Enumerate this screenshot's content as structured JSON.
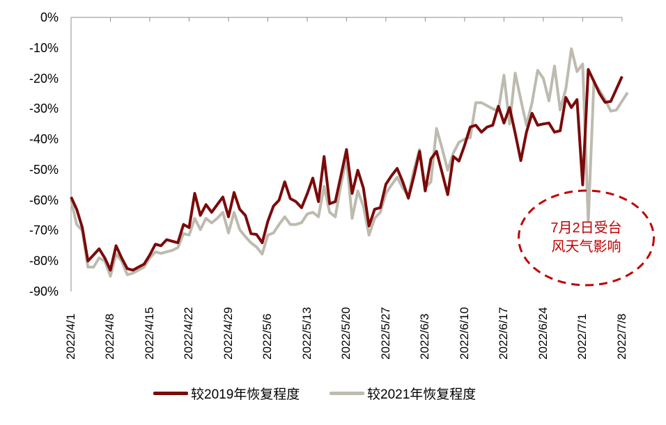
{
  "chart_data": {
    "type": "line",
    "title": "",
    "xlabel": "",
    "ylabel": "",
    "ylim": [
      -90,
      0
    ],
    "yticks": [
      "0%",
      "-10%",
      "-20%",
      "-30%",
      "-40%",
      "-50%",
      "-60%",
      "-70%",
      "-80%",
      "-90%"
    ],
    "xticks": [
      "2022/4/1",
      "2022/4/8",
      "2022/4/15",
      "2022/4/22",
      "2022/4/29",
      "2022/5/6",
      "2022/5/13",
      "2022/5/20",
      "2022/5/27",
      "2022/6/3",
      "2022/6/10",
      "2022/6/17",
      "2022/6/24",
      "2022/7/1",
      "2022/7/8"
    ],
    "x_start": "2022/4/1",
    "x_end": "2022/7/8",
    "x_step_days": 1,
    "grid": false,
    "legend_position": "bottom",
    "series": [
      {
        "name": "较2019年恢复程度",
        "color": "#7B0A0A",
        "values": [
          -59,
          -63,
          -69,
          -80,
          -78,
          -76,
          -79,
          -83,
          -75,
          -79,
          -82.5,
          -83,
          -82,
          -81,
          -78,
          -74.5,
          -75,
          -73,
          -73.5,
          -74,
          -68,
          -69,
          -57.8,
          -65,
          -61.5,
          -64,
          -61.5,
          -59,
          -65.5,
          -57.5,
          -63,
          -65,
          -71,
          -71.3,
          -74,
          -67,
          -62,
          -60,
          -54,
          -59.5,
          -60.5,
          -62.5,
          -58,
          -52.8,
          -60.5,
          -45.7,
          -61.2,
          -60.5,
          -52,
          -43.4,
          -57.8,
          -50.2,
          -56,
          -68.5,
          -63,
          -62.5,
          -54.8,
          -52,
          -49.6,
          -54,
          -59.4,
          -52,
          -44,
          -57,
          -46.5,
          -44,
          -51,
          -58.2,
          -45.7,
          -47.2,
          -42,
          -36,
          -35.4,
          -37.7,
          -36,
          -35.4,
          -29.2,
          -34.7,
          -29.6,
          -38,
          -47,
          -37.7,
          -31.5,
          -35.4,
          -35,
          -34.7,
          -37.7,
          -37.2,
          -26.3,
          -29.6,
          -27,
          -55,
          -17.1,
          -21,
          -25,
          -27.9,
          -27.6,
          -23.5,
          -19.4
        ]
      },
      {
        "name": "较2021年恢复程度",
        "color": "#BDBBAF",
        "values": [
          -60,
          -68,
          -70,
          -82,
          -82,
          -79,
          -80,
          -85,
          -77.7,
          -80,
          -84.5,
          -84,
          -83,
          -82,
          -79,
          -77,
          -77.5,
          -77,
          -76.5,
          -75.6,
          -71,
          -71.5,
          -66,
          -69.7,
          -66,
          -67.5,
          -66,
          -64,
          -70.8,
          -64,
          -69.7,
          -72,
          -74,
          -75.4,
          -77.7,
          -71.5,
          -70.8,
          -68,
          -65.5,
          -68,
          -68,
          -67.4,
          -64.6,
          -64,
          -65.5,
          -55.5,
          -64,
          -65.5,
          -55,
          -46.4,
          -66,
          -57,
          -62,
          -71.5,
          -66,
          -64,
          -57.8,
          -55,
          -52.5,
          -56,
          -58.7,
          -50,
          -43.4,
          -56,
          -54,
          -36.5,
          -43,
          -50.2,
          -44.5,
          -41,
          -40,
          -39.5,
          -28,
          -28,
          -29,
          -30,
          -30.8,
          -19,
          -35,
          -18.3,
          -27,
          -35.4,
          -28,
          -17.4,
          -20,
          -27.4,
          -16,
          -30.4,
          -23.5,
          -10.3,
          -17.8,
          -15.3,
          -67,
          -21.3,
          -24,
          -27,
          -30.8,
          -30.4,
          -27.5,
          -24.7
        ]
      }
    ],
    "annotation": {
      "line1": "7月2日受台",
      "line2": "风天气影响",
      "color": "#C00000"
    }
  },
  "legend": {
    "items": [
      {
        "label": "较2019年恢复程度",
        "color": "#7B0A0A"
      },
      {
        "label": "较2021年恢复程度",
        "color": "#BDBBAF"
      }
    ]
  }
}
